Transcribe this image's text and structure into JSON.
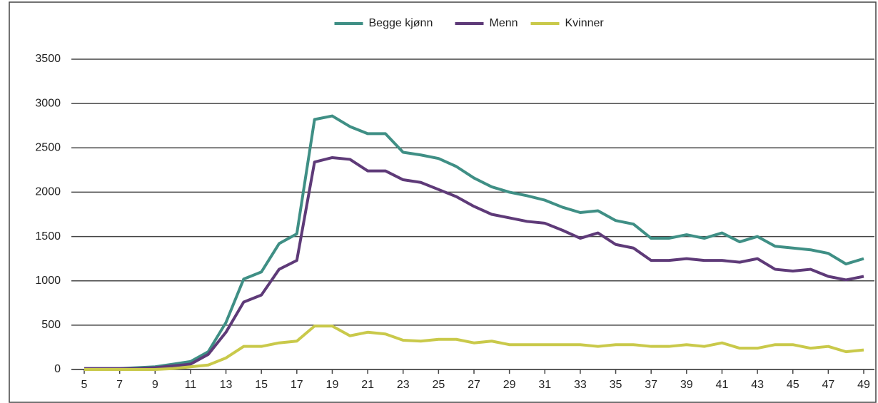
{
  "chart_data": {
    "type": "line",
    "x": [
      5,
      6,
      7,
      8,
      9,
      10,
      11,
      12,
      13,
      14,
      15,
      16,
      17,
      18,
      19,
      20,
      21,
      22,
      23,
      24,
      25,
      26,
      27,
      28,
      29,
      30,
      31,
      32,
      33,
      34,
      35,
      36,
      37,
      38,
      39,
      40,
      41,
      42,
      43,
      44,
      45,
      46,
      47,
      48,
      49
    ],
    "series": [
      {
        "name": "Begge kjønn",
        "color": "#3f8f85",
        "values": [
          10,
          10,
          10,
          20,
          30,
          60,
          90,
          200,
          530,
          1020,
          1100,
          1420,
          1530,
          2820,
          2860,
          2740,
          2660,
          2660,
          2450,
          2420,
          2380,
          2290,
          2160,
          2060,
          2000,
          1960,
          1910,
          1830,
          1770,
          1790,
          1680,
          1640,
          1480,
          1480,
          1520,
          1480,
          1540,
          1440,
          1500,
          1390,
          1370,
          1350,
          1310,
          1190,
          1250
        ]
      },
      {
        "name": "Menn",
        "color": "#5e3a78",
        "values": [
          10,
          10,
          10,
          10,
          20,
          40,
          60,
          170,
          420,
          760,
          840,
          1130,
          1230,
          2340,
          2390,
          2370,
          2240,
          2240,
          2140,
          2110,
          2030,
          1950,
          1840,
          1750,
          1710,
          1670,
          1650,
          1570,
          1480,
          1540,
          1410,
          1370,
          1230,
          1230,
          1250,
          1230,
          1230,
          1210,
          1250,
          1130,
          1110,
          1130,
          1050,
          1010,
          1050
        ]
      },
      {
        "name": "Kvinner",
        "color": "#c9c94a",
        "values": [
          0,
          0,
          0,
          0,
          0,
          10,
          30,
          50,
          130,
          260,
          260,
          300,
          320,
          490,
          490,
          380,
          420,
          400,
          330,
          320,
          340,
          340,
          300,
          320,
          280,
          280,
          280,
          280,
          280,
          260,
          280,
          280,
          260,
          260,
          280,
          260,
          300,
          240,
          240,
          280,
          280,
          240,
          260,
          200,
          220
        ]
      }
    ],
    "xlim": [
      5,
      49
    ],
    "xticks": [
      5,
      7,
      9,
      11,
      13,
      15,
      17,
      19,
      21,
      23,
      25,
      27,
      29,
      31,
      33,
      35,
      37,
      39,
      41,
      43,
      45,
      47,
      49
    ],
    "ylim": [
      0,
      3500
    ],
    "yticks": [
      0,
      500,
      1000,
      1500,
      2000,
      2500,
      3000,
      3500
    ],
    "grid": true,
    "legend": "top"
  }
}
